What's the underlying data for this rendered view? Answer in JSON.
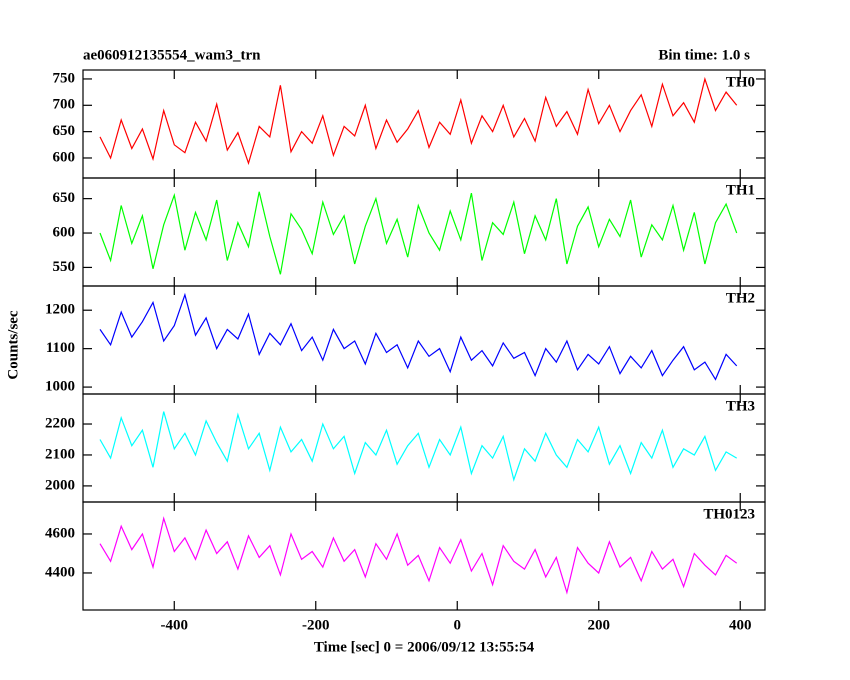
{
  "chart_data": [
    {
      "type": "line",
      "title": "ae060912135554_wam3_trn",
      "subtitle": "Bin time: 1.0 s",
      "x": [
        -505,
        -490,
        -475,
        -460,
        -445,
        -430,
        -415,
        -400,
        -385,
        -370,
        -355,
        -340,
        -325,
        -310,
        -295,
        -280,
        -265,
        -250,
        -235,
        -220,
        -205,
        -190,
        -175,
        -160,
        -145,
        -130,
        -115,
        -100,
        -85,
        -70,
        -55,
        -40,
        -25,
        -10,
        5,
        20,
        35,
        50,
        65,
        80,
        95,
        110,
        125,
        140,
        155,
        170,
        185,
        200,
        215,
        230,
        245,
        260,
        275,
        290,
        305,
        320,
        335,
        350,
        365,
        380,
        395
      ],
      "series": [
        {
          "name": "TH0",
          "color": "#ff0000",
          "values": [
            640,
            600,
            672,
            618,
            655,
            598,
            690,
            625,
            610,
            668,
            632,
            702,
            615,
            648,
            590,
            660,
            640,
            738,
            612,
            650,
            628,
            680,
            605,
            660,
            642,
            700,
            618,
            672,
            630,
            655,
            690,
            620,
            668,
            645,
            710,
            628,
            680,
            650,
            700,
            640,
            675,
            632,
            715,
            660,
            688,
            645,
            730,
            665,
            700,
            650,
            690,
            720,
            660,
            740,
            680,
            705,
            668,
            750,
            690,
            725,
            700
          ]
        }
      ],
      "xlim": [
        -529,
        435
      ],
      "xticks": [
        -400,
        -200,
        0,
        200,
        400
      ],
      "ylim": [
        562,
        767
      ],
      "yticks": [
        600,
        650,
        700,
        750
      ]
    },
    {
      "type": "line",
      "x": [
        -505,
        -490,
        -475,
        -460,
        -445,
        -430,
        -415,
        -400,
        -385,
        -370,
        -355,
        -340,
        -325,
        -310,
        -295,
        -280,
        -265,
        -250,
        -235,
        -220,
        -205,
        -190,
        -175,
        -160,
        -145,
        -130,
        -115,
        -100,
        -85,
        -70,
        -55,
        -40,
        -25,
        -10,
        5,
        20,
        35,
        50,
        65,
        80,
        95,
        110,
        125,
        140,
        155,
        170,
        185,
        200,
        215,
        230,
        245,
        260,
        275,
        290,
        305,
        320,
        335,
        350,
        365,
        380,
        395
      ],
      "series": [
        {
          "name": "TH1",
          "color": "#00ff00",
          "values": [
            600,
            560,
            640,
            585,
            625,
            548,
            612,
            655,
            575,
            630,
            590,
            648,
            560,
            615,
            580,
            660,
            595,
            540,
            628,
            605,
            570,
            645,
            598,
            625,
            555,
            610,
            650,
            585,
            620,
            565,
            640,
            600,
            575,
            632,
            590,
            658,
            560,
            615,
            598,
            645,
            570,
            625,
            590,
            650,
            555,
            610,
            638,
            580,
            620,
            595,
            648,
            565,
            612,
            590,
            640,
            575,
            630,
            555,
            615,
            642,
            600
          ]
        }
      ],
      "xlim": [
        -529,
        435
      ],
      "xticks": [
        -400,
        -200,
        0,
        200,
        400
      ],
      "ylim": [
        523,
        680
      ],
      "yticks": [
        550,
        600,
        650
      ]
    },
    {
      "type": "line",
      "ylabel": "Counts/sec",
      "x": [
        -505,
        -490,
        -475,
        -460,
        -445,
        -430,
        -415,
        -400,
        -385,
        -370,
        -355,
        -340,
        -325,
        -310,
        -295,
        -280,
        -265,
        -250,
        -235,
        -220,
        -205,
        -190,
        -175,
        -160,
        -145,
        -130,
        -115,
        -100,
        -85,
        -70,
        -55,
        -40,
        -25,
        -10,
        5,
        20,
        35,
        50,
        65,
        80,
        95,
        110,
        125,
        140,
        155,
        170,
        185,
        200,
        215,
        230,
        245,
        260,
        275,
        290,
        305,
        320,
        335,
        350,
        365,
        380,
        395
      ],
      "series": [
        {
          "name": "TH2",
          "color": "#0000ff",
          "values": [
            1150,
            1110,
            1195,
            1130,
            1170,
            1220,
            1120,
            1160,
            1240,
            1135,
            1180,
            1100,
            1150,
            1125,
            1190,
            1085,
            1140,
            1110,
            1165,
            1095,
            1130,
            1070,
            1150,
            1100,
            1120,
            1060,
            1140,
            1090,
            1110,
            1050,
            1120,
            1080,
            1100,
            1040,
            1130,
            1070,
            1095,
            1055,
            1115,
            1075,
            1090,
            1030,
            1100,
            1065,
            1120,
            1045,
            1085,
            1060,
            1105,
            1035,
            1080,
            1050,
            1095,
            1030,
            1070,
            1105,
            1045,
            1065,
            1020,
            1085,
            1055
          ]
        }
      ],
      "xlim": [
        -529,
        435
      ],
      "xticks": [
        -400,
        -200,
        0,
        200,
        400
      ],
      "ylim": [
        982,
        1263
      ],
      "yticks": [
        1000,
        1100,
        1200
      ]
    },
    {
      "type": "line",
      "x": [
        -505,
        -490,
        -475,
        -460,
        -445,
        -430,
        -415,
        -400,
        -385,
        -370,
        -355,
        -340,
        -325,
        -310,
        -295,
        -280,
        -265,
        -250,
        -235,
        -220,
        -205,
        -190,
        -175,
        -160,
        -145,
        -130,
        -115,
        -100,
        -85,
        -70,
        -55,
        -40,
        -25,
        -10,
        5,
        20,
        35,
        50,
        65,
        80,
        95,
        110,
        125,
        140,
        155,
        170,
        185,
        200,
        215,
        230,
        245,
        260,
        275,
        290,
        305,
        320,
        335,
        350,
        365,
        380,
        395
      ],
      "series": [
        {
          "name": "TH3",
          "color": "#00ffff",
          "values": [
            2150,
            2090,
            2220,
            2130,
            2180,
            2060,
            2240,
            2120,
            2170,
            2100,
            2210,
            2140,
            2080,
            2230,
            2120,
            2170,
            2050,
            2190,
            2110,
            2150,
            2080,
            2200,
            2120,
            2160,
            2040,
            2140,
            2100,
            2180,
            2070,
            2130,
            2170,
            2060,
            2150,
            2100,
            2190,
            2040,
            2130,
            2090,
            2160,
            2020,
            2120,
            2080,
            2170,
            2100,
            2060,
            2150,
            2110,
            2190,
            2070,
            2130,
            2040,
            2140,
            2090,
            2180,
            2060,
            2120,
            2100,
            2160,
            2050,
            2110,
            2090
          ]
        }
      ],
      "xlim": [
        -529,
        435
      ],
      "xticks": [
        -400,
        -200,
        0,
        200,
        400
      ],
      "ylim": [
        1948,
        2297
      ],
      "yticks": [
        2000,
        2100,
        2200
      ]
    },
    {
      "type": "line",
      "xlabel": "Time [sec] 0 = 2006/09/12 13:55:54",
      "x": [
        -505,
        -490,
        -475,
        -460,
        -445,
        -430,
        -415,
        -400,
        -385,
        -370,
        -355,
        -340,
        -325,
        -310,
        -295,
        -280,
        -265,
        -250,
        -235,
        -220,
        -205,
        -190,
        -175,
        -160,
        -145,
        -130,
        -115,
        -100,
        -85,
        -70,
        -55,
        -40,
        -25,
        -10,
        5,
        20,
        35,
        50,
        65,
        80,
        95,
        110,
        125,
        140,
        155,
        170,
        185,
        200,
        215,
        230,
        245,
        260,
        275,
        290,
        305,
        320,
        335,
        350,
        365,
        380,
        395
      ],
      "series": [
        {
          "name": "TH0123",
          "color": "#ff00ff",
          "values": [
            4550,
            4460,
            4640,
            4520,
            4600,
            4430,
            4680,
            4510,
            4580,
            4470,
            4620,
            4500,
            4560,
            4420,
            4590,
            4480,
            4540,
            4390,
            4600,
            4470,
            4510,
            4430,
            4580,
            4460,
            4520,
            4380,
            4550,
            4470,
            4600,
            4440,
            4490,
            4360,
            4530,
            4450,
            4570,
            4410,
            4500,
            4340,
            4540,
            4460,
            4420,
            4520,
            4380,
            4480,
            4300,
            4530,
            4450,
            4400,
            4560,
            4430,
            4480,
            4360,
            4510,
            4420,
            4470,
            4330,
            4500,
            4440,
            4390,
            4490,
            4450
          ]
        }
      ],
      "xlim": [
        -529,
        435
      ],
      "xticks": [
        -400,
        -200,
        0,
        200,
        400
      ],
      "ylim": [
        4210,
        4764
      ],
      "yticks": [
        4400,
        4600
      ]
    }
  ]
}
